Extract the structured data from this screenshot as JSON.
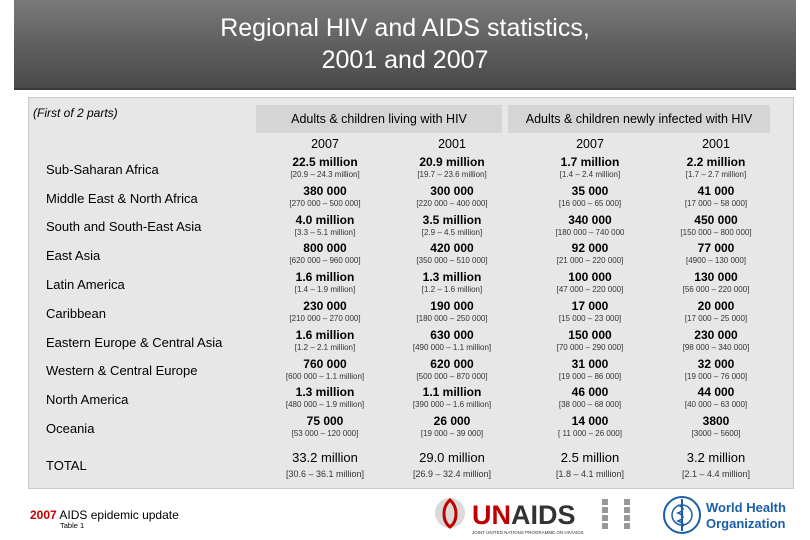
{
  "title": {
    "line1": "Regional HIV and AIDS statistics,",
    "line2": "2001 and 2007"
  },
  "subtitle": "(First of 2 parts)",
  "groups": [
    {
      "label": "Adults & children living with HIV",
      "years": [
        "2007",
        "2001"
      ]
    },
    {
      "label": "Adults & children newly infected with HIV",
      "years": [
        "2007",
        "2001"
      ]
    }
  ],
  "rows": [
    {
      "region": "Sub-Saharan Africa",
      "cells": [
        {
          "v": "22.5 million",
          "r": "[20.9 – 24.3 million]"
        },
        {
          "v": "20.9 million",
          "r": "[19.7 – 23.6 million]"
        },
        {
          "v": "1.7 million",
          "r": "[1.4 – 2.4 million]"
        },
        {
          "v": "2.2 million",
          "r": "[1.7 – 2.7 million]"
        }
      ]
    },
    {
      "region": "Middle East & North Africa",
      "cells": [
        {
          "v": "380 000",
          "r": "[270 000 – 500 000]"
        },
        {
          "v": "300 000",
          "r": "[220 000 – 400 000]"
        },
        {
          "v": "35 000",
          "r": "[16 000 – 65 000]"
        },
        {
          "v": "41 000",
          "r": "[17 000 – 58 000]"
        }
      ]
    },
    {
      "region": "South and South-East Asia",
      "cells": [
        {
          "v": "4.0 million",
          "r": "[3.3 – 5.1 million]"
        },
        {
          "v": "3.5 million",
          "r": "[2.9 – 4.5 million]"
        },
        {
          "v": "340 000",
          "r": "[180 000 – 740 000"
        },
        {
          "v": "450 000",
          "r": "[150 000 – 800 000]"
        }
      ]
    },
    {
      "region": "East Asia",
      "cells": [
        {
          "v": "800 000",
          "r": "[620 000 – 960 000]"
        },
        {
          "v": "420 000",
          "r": "[350 000 – 510 000]"
        },
        {
          "v": "92 000",
          "r": "[21 000 – 220 000]"
        },
        {
          "v": "77 000",
          "r": "[4900 – 130 000]"
        }
      ]
    },
    {
      "region": "Latin America",
      "cells": [
        {
          "v": "1.6 million",
          "r": "[1.4 – 1.9 million]"
        },
        {
          "v": "1.3 million",
          "r": "[1.2 – 1.6 million]"
        },
        {
          "v": "100 000",
          "r": "[47 000 – 220 000]"
        },
        {
          "v": "130 000",
          "r": "[56 000 – 220 000]"
        }
      ]
    },
    {
      "region": "Caribbean",
      "cells": [
        {
          "v": "230 000",
          "r": "[210 000 – 270 000]"
        },
        {
          "v": "190 000",
          "r": "[180 000 – 250 000]"
        },
        {
          "v": "17 000",
          "r": "[15 000 – 23 000]"
        },
        {
          "v": "20 000",
          "r": "[17 000 – 25 000]"
        }
      ]
    },
    {
      "region": "Eastern Europe & Central Asia",
      "cells": [
        {
          "v": "1.6 million",
          "r": "[1.2 – 2.1 million]"
        },
        {
          "v": "630 000",
          "r": "[490 000 – 1.1 million]"
        },
        {
          "v": "150 000",
          "r": "[70 000 – 290 000]"
        },
        {
          "v": "230 000",
          "r": "[98 000 – 340 000]"
        }
      ]
    },
    {
      "region": "Western & Central Europe",
      "cells": [
        {
          "v": "760 000",
          "r": "[600 000 – 1.1 million]"
        },
        {
          "v": "620 000",
          "r": "[500 000 – 870 000]"
        },
        {
          "v": "31 000",
          "r": "[19 000 – 86 000]"
        },
        {
          "v": "32 000",
          "r": "[19 000 – 76 000]"
        }
      ]
    },
    {
      "region": "North America",
      "cells": [
        {
          "v": "1.3 million",
          "r": "[480 000 – 1.9 million]"
        },
        {
          "v": "1.1 million",
          "r": "[390 000 – 1.6 million]"
        },
        {
          "v": "46 000",
          "r": "[38 000 – 68 000]"
        },
        {
          "v": "44 000",
          "r": "[40 000 – 63 000]"
        }
      ]
    },
    {
      "region": "Oceania",
      "cells": [
        {
          "v": "75 000",
          "r": "[53 000 – 120 000]"
        },
        {
          "v": "26 000",
          "r": "[19 000 – 39 000]"
        },
        {
          "v": "14 000",
          "r": "[ 11 000 – 26 000]"
        },
        {
          "v": "3800",
          "r": "[3000 – 5600]"
        }
      ]
    }
  ],
  "total": {
    "region": "TOTAL",
    "cells": [
      {
        "v": "33.2 million",
        "r": "[30.6 – 36.1 million]"
      },
      {
        "v": "29.0 million",
        "r": "[26.9 – 32.4 million]"
      },
      {
        "v": "2.5 million",
        "r": "[1.8 – 4.1 million]"
      },
      {
        "v": "3.2 million",
        "r": "[2.1 – 4.4 million]"
      }
    ]
  },
  "footer": {
    "year": "2007",
    "text": " AIDS epidemic update",
    "table": "Table 1"
  },
  "logos": {
    "unaids_text": "UNAIDS",
    "unaids_small": "JOINT UNITED NATIONS PROGRAMME ON HIV/AIDS",
    "who_line1": "World Health",
    "who_line2": "Organization",
    "unaids_color": "#c00000",
    "who_color": "#1b5ea8"
  }
}
